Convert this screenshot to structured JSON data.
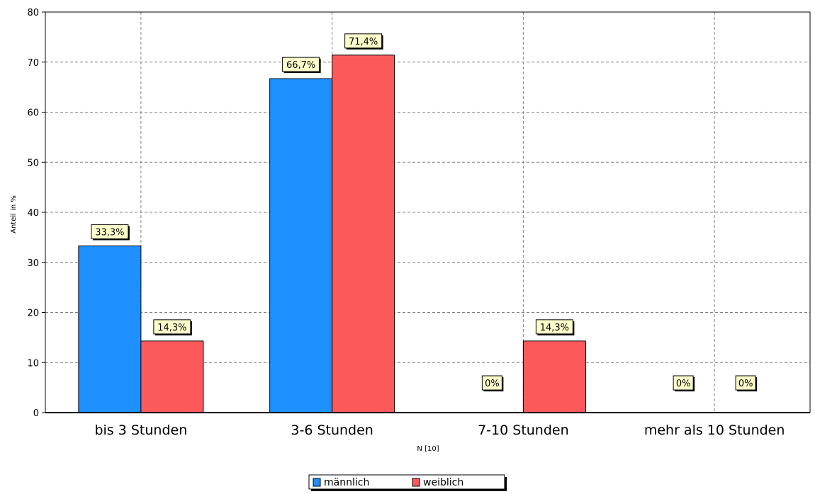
{
  "chart_data": {
    "type": "bar",
    "categories": [
      "bis 3 Stunden",
      "3-6 Stunden",
      "7-10 Stunden",
      "mehr als 10 Stunden"
    ],
    "series": [
      {
        "name": "männlich",
        "color": "#1e90ff",
        "values": [
          33.3,
          66.7,
          0,
          0
        ],
        "labels": [
          "33,3%",
          "66,7%",
          "0%",
          "0%"
        ]
      },
      {
        "name": "weiblich",
        "color": "#fc5a5a",
        "values": [
          14.3,
          71.4,
          14.3,
          0
        ],
        "labels": [
          "14,3%",
          "71,4%",
          "14,3%",
          "0%"
        ]
      }
    ],
    "title": "",
    "xlabel": "N [10]",
    "ylabel": "Anteil in %",
    "ylim": [
      0,
      80
    ],
    "yticks": [
      0,
      10,
      20,
      30,
      40,
      50,
      60,
      70,
      80
    ],
    "grid": true,
    "label_background": "#ffffcc",
    "legend_position": "bottom-center"
  }
}
